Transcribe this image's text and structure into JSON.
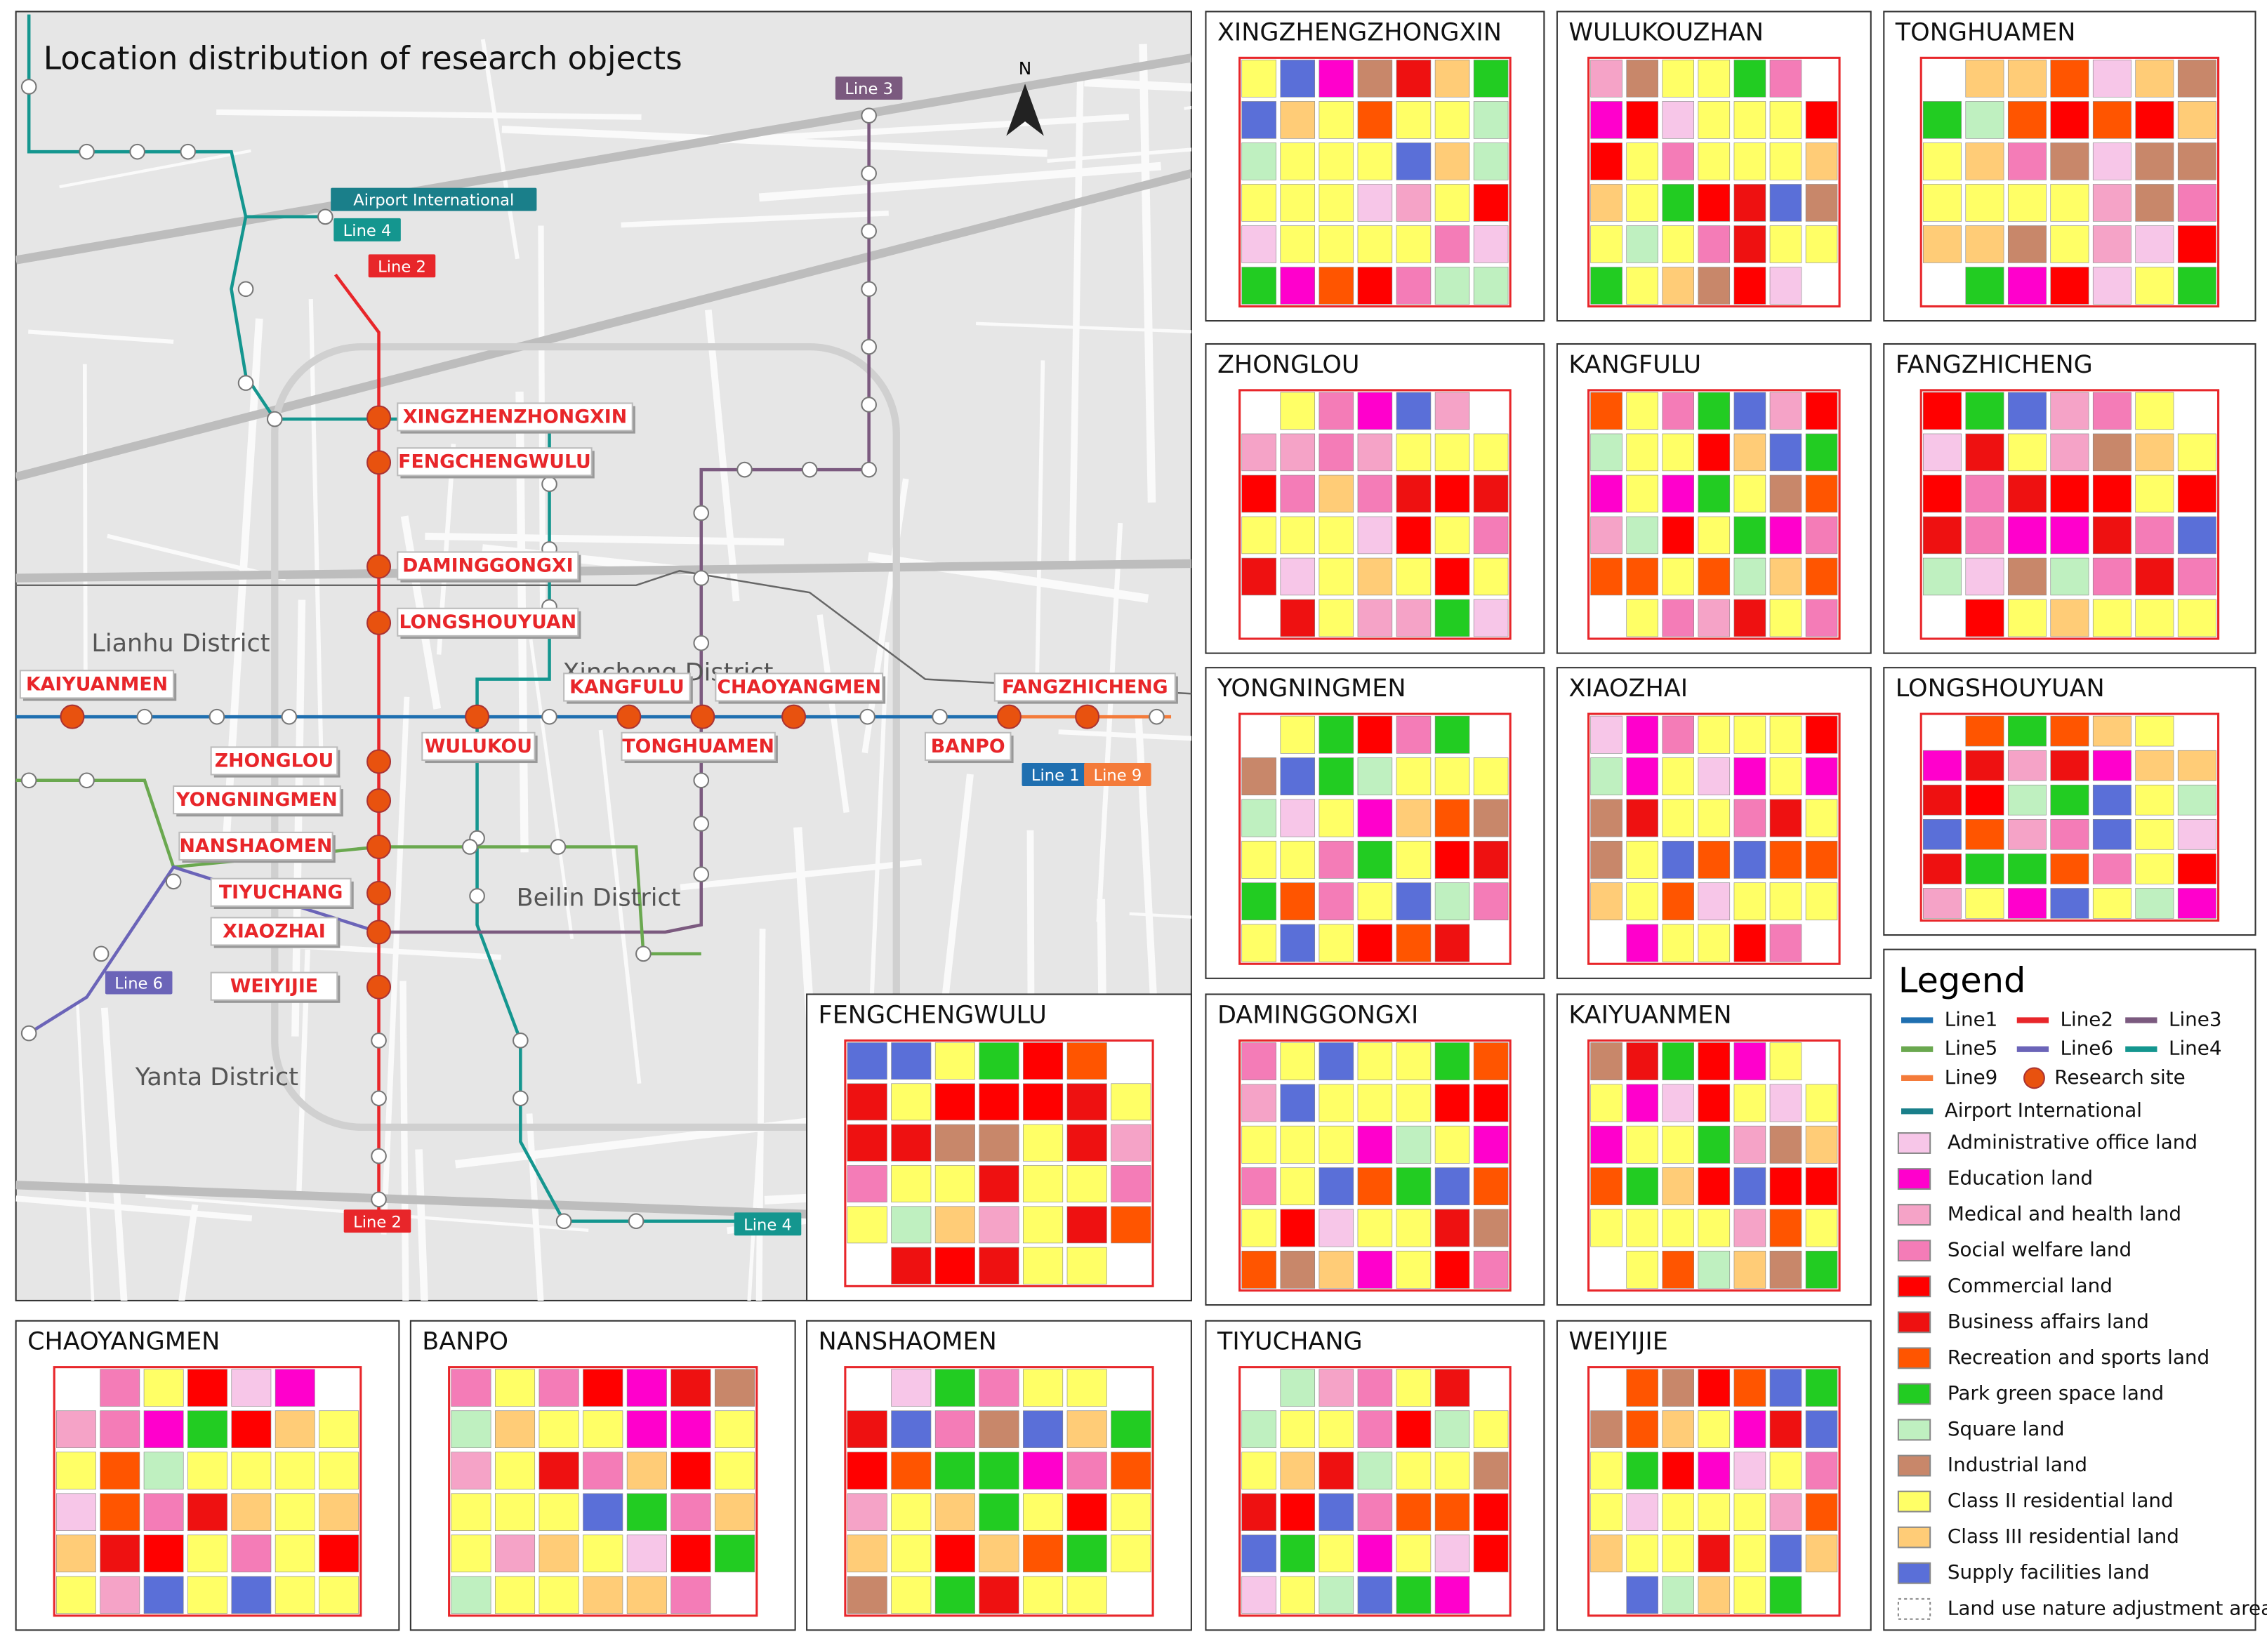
{
  "map": {
    "title": "Location distribution of research objects",
    "north": "N",
    "districts": [
      "Lianhu District",
      "Xincheng District",
      "Beilin District",
      "Yanta District"
    ],
    "line_labels": [
      "Line 3",
      "Airport International",
      "Line 4",
      "Line 2",
      "Line 1",
      "Line 9",
      "Line 6",
      "Line 2",
      "Line 4"
    ],
    "stations": [
      "XINGZHENZHONGXIN",
      "FENGCHENGWULU",
      "DAMINGGONGXI",
      "LONGSHOUYUAN",
      "KAIYUANMEN",
      "ZHONGLOU",
      "YONGNINGMEN",
      "NANSHAOMEN",
      "TIYUCHANG",
      "XIAOZHAI",
      "WEIYIJIE",
      "WULUKOU",
      "KANGFULU",
      "TONGHUAMEN",
      "CHAOYANGMEN",
      "FANGZHICHENG",
      "BANPO"
    ]
  },
  "panels": [
    {
      "title": "XINGZHENGZHONGXIN"
    },
    {
      "title": "WULUKOUZHAN"
    },
    {
      "title": "TONGHUAMEN"
    },
    {
      "title": "ZHONGLOU"
    },
    {
      "title": "KANGFULU"
    },
    {
      "title": "FANGZHICHENG"
    },
    {
      "title": "YONGNINGMEN"
    },
    {
      "title": "XIAOZHAI"
    },
    {
      "title": "LONGSHOUYUAN"
    },
    {
      "title": "FENGCHENGWULU"
    },
    {
      "title": "DAMINGGONGXI"
    },
    {
      "title": "KAIYUANMEN"
    },
    {
      "title": "CHAOYANGMEN"
    },
    {
      "title": "BANPO"
    },
    {
      "title": "NANSHAOMEN"
    },
    {
      "title": "TIYUCHANG"
    },
    {
      "title": "WEIYIJIE"
    }
  ],
  "legend": {
    "title": "Legend",
    "lines": [
      {
        "label": "Line1",
        "color": "#1f6fb0"
      },
      {
        "label": "Line2",
        "color": "#e8262a"
      },
      {
        "label": "Line3",
        "color": "#7b5a7f"
      },
      {
        "label": "Line5",
        "color": "#6aa84f"
      },
      {
        "label": "Line6",
        "color": "#6b64b8"
      },
      {
        "label": "Line4",
        "color": "#14968f"
      },
      {
        "label": "Line9",
        "color": "#f47b3a"
      },
      {
        "label": "Research site",
        "color": "#e8520f"
      },
      {
        "label": "Airport International",
        "color": "#1a7f8a"
      }
    ],
    "land_uses": [
      {
        "label": "Administrative office land",
        "color": "#f7c6e8"
      },
      {
        "label": "Education land",
        "color": "#ff00cc"
      },
      {
        "label": "Medical and health land",
        "color": "#f5a3c7"
      },
      {
        "label": "Social welfare land",
        "color": "#f47cb7"
      },
      {
        "label": "Commercial land",
        "color": "#ff0000"
      },
      {
        "label": "Business affairs land",
        "color": "#ee1111"
      },
      {
        "label": "Recreation and sports land",
        "color": "#ff5500"
      },
      {
        "label": "Park green space land",
        "color": "#22cc22"
      },
      {
        "label": "Square land",
        "color": "#bff0c0"
      },
      {
        "label": "Industrial land",
        "color": "#c8876a"
      },
      {
        "label": "Class II residential land",
        "color": "#ffff66"
      },
      {
        "label": "Class III residential land",
        "color": "#ffcc77"
      },
      {
        "label": "Supply facilities land",
        "color": "#5a6fd8"
      },
      {
        "label": "Land use nature adjustment area",
        "color": "#ffffff"
      }
    ]
  }
}
